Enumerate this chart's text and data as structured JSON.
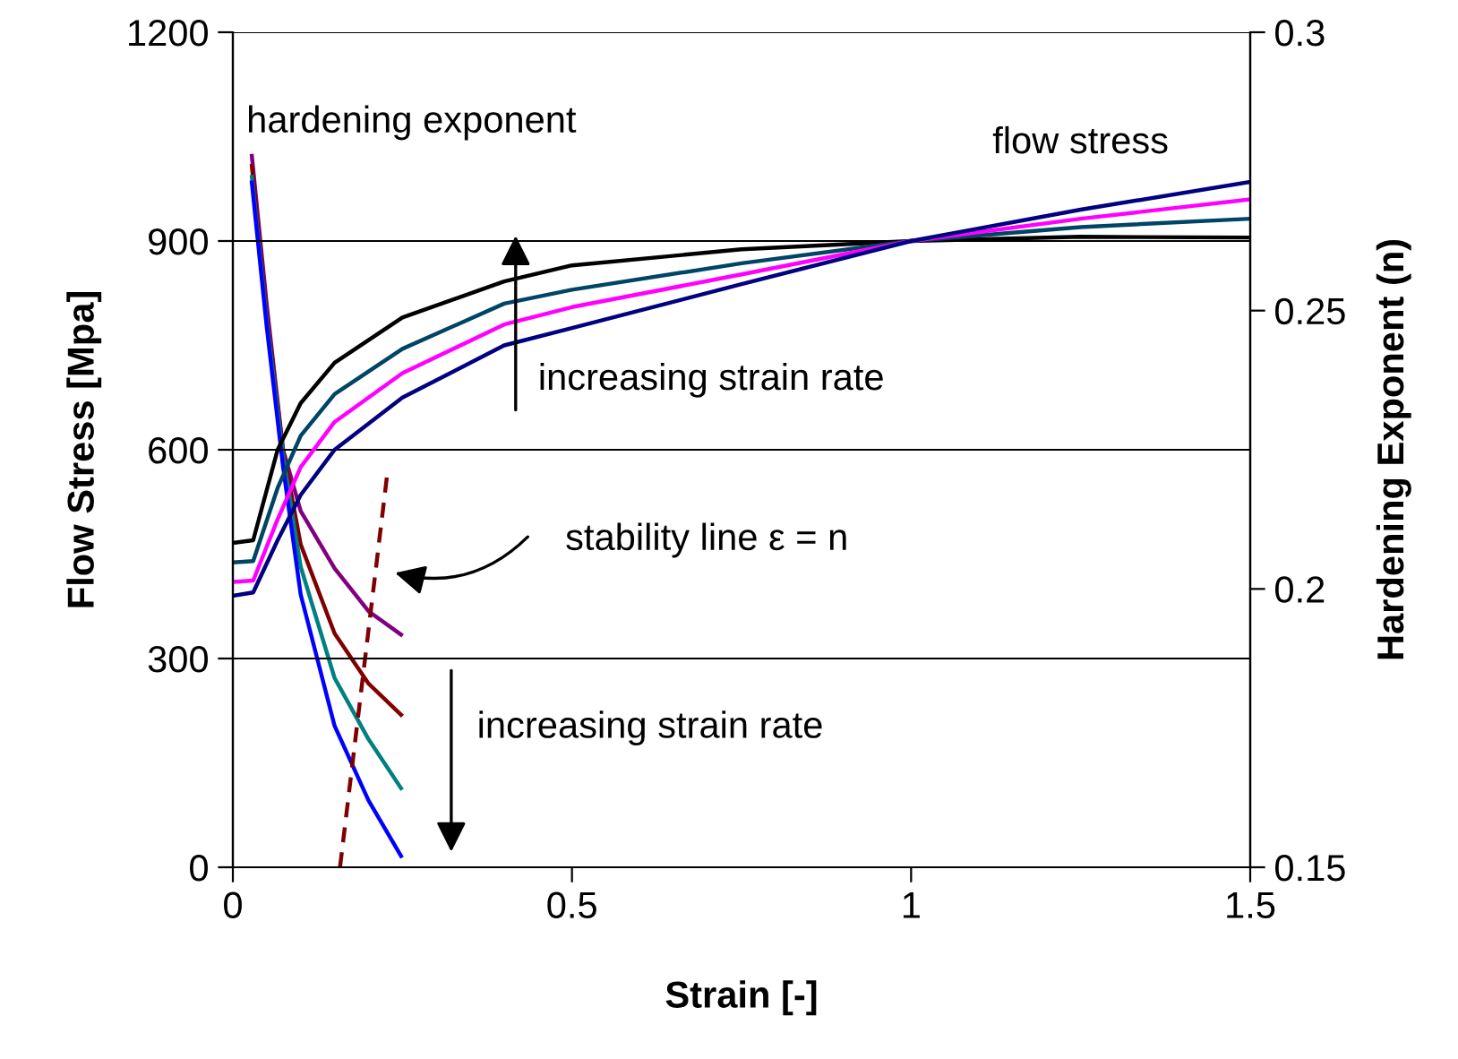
{
  "chart_data": {
    "type": "line",
    "xlabel": "Strain [-]",
    "ylabel": "Flow Stress [Mpa]",
    "y2label": "Hardening Exponent (n)",
    "xlim": [
      0,
      1.5
    ],
    "xticks": [
      0,
      0.5,
      1,
      1.5
    ],
    "ylim": [
      0,
      1200
    ],
    "yticks": [
      0,
      300,
      600,
      900,
      1200
    ],
    "y2lim": [
      0.15,
      0.3
    ],
    "y2ticks": [
      0.15,
      0.2,
      0.25,
      0.3
    ],
    "grid": "y",
    "marker": "none",
    "line_style": "solid",
    "x": [
      0,
      0.03,
      0.066,
      0.1,
      0.15,
      0.25,
      0.4,
      0.5,
      0.75,
      1.0,
      1.25,
      1.5
    ],
    "series": [
      {
        "color": "#000000",
        "values": [
          466,
          470,
          600,
          667,
          725,
          790,
          842,
          865,
          888,
          900,
          906,
          905
        ]
      },
      {
        "color": "#004466",
        "values": [
          438,
          440,
          545,
          620,
          680,
          745,
          810,
          830,
          868,
          900,
          920,
          932
        ]
      },
      {
        "color": "#ff00ff",
        "values": [
          410,
          412,
          500,
          575,
          640,
          710,
          780,
          805,
          852,
          900,
          932,
          960
        ]
      },
      {
        "color": "#000080",
        "values": [
          390,
          395,
          470,
          535,
          600,
          675,
          750,
          775,
          838,
          900,
          945,
          985
        ]
      },
      {
        "axis": "y2",
        "color": "#800080",
        "x": [
          0.028,
          0.05,
          0.074,
          0.1,
          0.15,
          0.2,
          0.248
        ],
        "values": [
          0.2778,
          0.251,
          0.225,
          0.214,
          0.2037,
          0.196,
          0.1918
        ]
      },
      {
        "axis": "y2",
        "color": "#800000",
        "x": [
          0.028,
          0.05,
          0.074,
          0.1,
          0.15,
          0.2,
          0.248
        ],
        "values": [
          0.276,
          0.249,
          0.225,
          0.208,
          0.192,
          0.183,
          0.1774
        ]
      },
      {
        "axis": "y2",
        "color": "#008080",
        "x": [
          0.028,
          0.05,
          0.074,
          0.1,
          0.15,
          0.2,
          0.248
        ],
        "values": [
          0.274,
          0.248,
          0.224,
          0.204,
          0.184,
          0.173,
          0.1642
        ]
      },
      {
        "axis": "y2",
        "color": "#0000ff",
        "x": [
          0.028,
          0.05,
          0.074,
          0.1,
          0.15,
          0.2,
          0.248
        ],
        "values": [
          0.273,
          0.247,
          0.222,
          0.199,
          0.1754,
          0.162,
          0.152
        ]
      },
      {
        "axis": "y2",
        "color": "#800000",
        "line_style": "dashed",
        "x": [
          0.158,
          0.227
        ],
        "values": [
          0.15,
          0.22
        ]
      }
    ],
    "annotations": [
      "hardening exponent",
      "flow stress",
      "increasing strain rate",
      "stability line ε = n",
      "increasing strain rate"
    ]
  }
}
